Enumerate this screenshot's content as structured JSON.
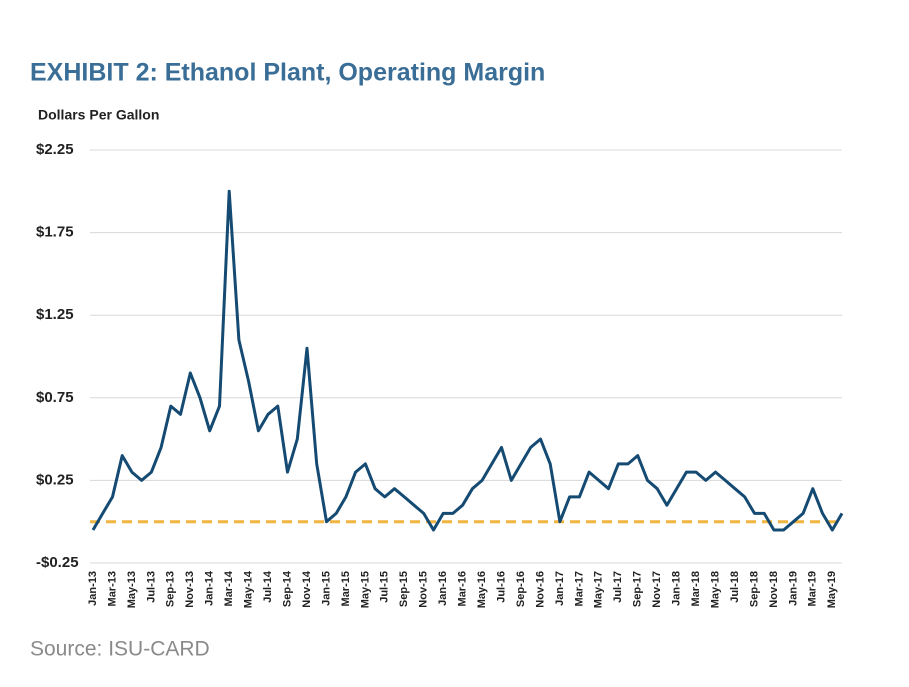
{
  "chart_data": {
    "type": "line",
    "title": "EXHIBIT 2: Ethanol Plant, Operating Margin",
    "y_label": "Dollars Per Gallon",
    "source": "Source: ISU-CARD",
    "categories": [
      "Jan-13",
      null,
      "Mar-13",
      null,
      "May-13",
      null,
      "Jul-13",
      null,
      "Sep-13",
      null,
      "Nov-13",
      null,
      "Jan-14",
      null,
      "Mar-14",
      null,
      "May-14",
      null,
      "Jul-14",
      null,
      "Sep-14",
      null,
      "Nov-14",
      null,
      "Jan-15",
      null,
      "Mar-15",
      null,
      "May-15",
      null,
      "Jul-15",
      null,
      "Sep-15",
      null,
      "Nov-15",
      null,
      "Jan-16",
      null,
      "Mar-16",
      null,
      "May-16",
      null,
      "Jul-16",
      null,
      "Sep-16",
      null,
      "Nov-16",
      null,
      "Jan-17",
      null,
      "Mar-17",
      null,
      "May-17",
      null,
      "Jul-17",
      null,
      "Sep-17",
      null,
      "Nov-17",
      null,
      "Jan-18",
      null,
      "Mar-18",
      null,
      "May-18",
      null,
      "Jul-18",
      null,
      "Sep-18",
      null,
      "Nov-18",
      null,
      "Jan-19",
      null,
      "Mar-19",
      null,
      "May-19",
      null
    ],
    "series": [
      {
        "name": "Operating Margin",
        "color": "#154a72",
        "values": [
          -0.05,
          0.05,
          0.15,
          0.4,
          0.3,
          0.25,
          0.3,
          0.45,
          0.7,
          0.65,
          0.9,
          0.75,
          0.55,
          0.7,
          2.0,
          1.1,
          0.85,
          0.55,
          0.65,
          0.7,
          0.3,
          0.5,
          1.05,
          0.35,
          0.0,
          0.05,
          0.15,
          0.3,
          0.35,
          0.2,
          0.15,
          0.2,
          0.15,
          0.1,
          0.05,
          -0.05,
          0.05,
          0.05,
          0.1,
          0.2,
          0.25,
          0.35,
          0.45,
          0.25,
          0.35,
          0.45,
          0.5,
          0.35,
          0.0,
          0.15,
          0.15,
          0.3,
          0.25,
          0.2,
          0.35,
          0.35,
          0.4,
          0.25,
          0.2,
          0.1,
          0.2,
          0.3,
          0.3,
          0.25,
          0.3,
          0.25,
          0.2,
          0.15,
          0.05,
          0.05,
          -0.05,
          -0.05,
          0.0,
          0.05,
          0.2,
          0.05,
          -0.05,
          0.05
        ]
      }
    ],
    "reference_line": {
      "value": 0,
      "color": "#f0b440"
    },
    "ylim": [
      -0.25,
      2.25
    ],
    "yticks": [
      {
        "value": -0.25,
        "label": "-$0.25"
      },
      {
        "value": 0.25,
        "label": "$0.25"
      },
      {
        "value": 0.75,
        "label": "$0.75"
      },
      {
        "value": 1.25,
        "label": "$1.25"
      },
      {
        "value": 1.75,
        "label": "$1.75"
      },
      {
        "value": 2.25,
        "label": "$2.25"
      }
    ],
    "grid": true
  }
}
